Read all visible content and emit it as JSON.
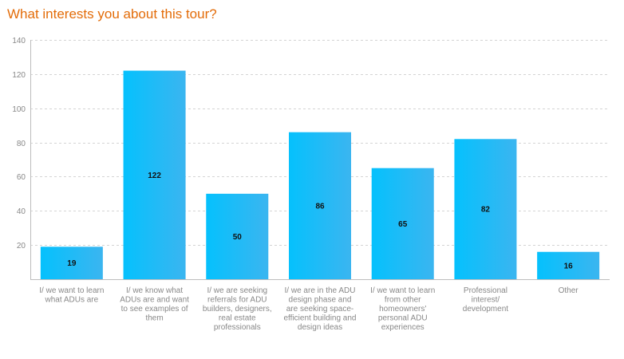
{
  "chart_data": {
    "type": "bar",
    "title": "What interests you about this tour?",
    "xlabel": "",
    "ylabel": "",
    "ylim": [
      0,
      140
    ],
    "y_ticks": [
      20,
      40,
      60,
      80,
      100,
      120,
      140
    ],
    "grid": true,
    "categories": [
      "I/ we want to learn what ADUs are",
      "I/ we know what ADUs are and want to see examples of them",
      "I/ we are seeking referrals for ADU builders, designers, real estate professionals",
      "I/ we are in the ADU design phase and are seeking space-efficient building and design ideas",
      "I/ we want to learn from other homeowners' personal ADU experiences",
      "Professional interest/ development",
      "Other"
    ],
    "category_lines": [
      [
        "I/ we want to learn",
        "what ADUs are"
      ],
      [
        "I/ we know what",
        "ADUs are and want",
        "to see examples of",
        "them"
      ],
      [
        "I/ we are seeking",
        "referrals for ADU",
        "builders, designers,",
        "real estate",
        "professionals"
      ],
      [
        "I/ we are in the ADU",
        "design phase and",
        "are seeking space-",
        "efficient building and",
        "design ideas"
      ],
      [
        "I/ we want to learn",
        "from other",
        "homeowners'",
        "personal ADU",
        "experiences"
      ],
      [
        "Professional",
        "interest/",
        "development"
      ],
      [
        "Other"
      ]
    ],
    "values": [
      19,
      122,
      50,
      86,
      65,
      82,
      16
    ],
    "colors": {
      "bar_start": "#05c1fd",
      "bar_end": "#3bb5f0",
      "title": "#e36c09",
      "grid": "#d4d4d4",
      "axis": "#bdbdbd",
      "text": "#888888"
    }
  }
}
